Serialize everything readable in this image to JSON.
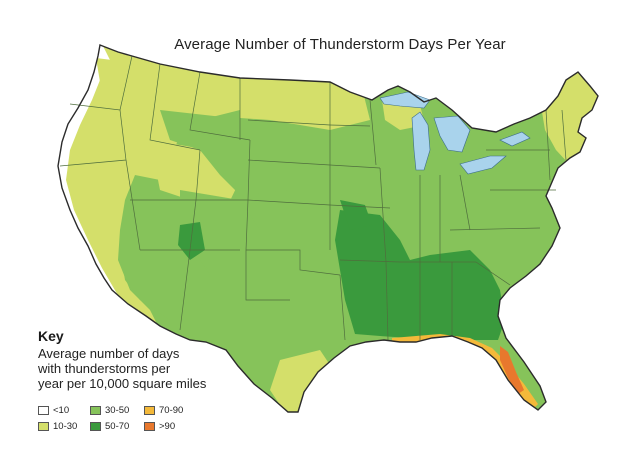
{
  "title": "Average Number of Thunderstorm Days Per Year",
  "key": {
    "heading": "Key",
    "description": [
      "Average number of days",
      "with thunderstorms per",
      "year per 10,000 square miles"
    ]
  },
  "legend": [
    {
      "label": "<10",
      "color": "#ffffff"
    },
    {
      "label": "10-30",
      "color": "#d4df6a"
    },
    {
      "label": "30-50",
      "color": "#86c35a"
    },
    {
      "label": "50-70",
      "color": "#3a9a3d"
    },
    {
      "label": "70-90",
      "color": "#f4b93a"
    },
    {
      "label": ">90",
      "color": "#e8782d"
    }
  ],
  "colors": {
    "lakes": "#a9d3ec",
    "borders": "#2b2b2b",
    "state_lines": "#5a7a45"
  }
}
